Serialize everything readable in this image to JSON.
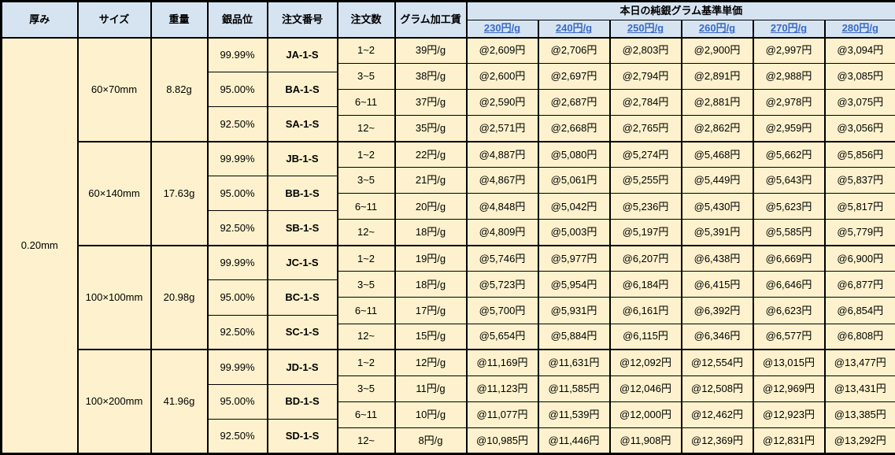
{
  "colors": {
    "header_bg": "#d6e4f2",
    "body_bg": "#fdf2cd",
    "link_blue": "#3a6bc6",
    "border": "#000000"
  },
  "header": {
    "columns": [
      {
        "key": "thickness",
        "label": "厚み"
      },
      {
        "key": "size",
        "label": "サイズ"
      },
      {
        "key": "weight",
        "label": "重量"
      },
      {
        "key": "purity",
        "label": "銀品位"
      },
      {
        "key": "order-number",
        "label": "注文番号"
      },
      {
        "key": "order-qty",
        "label": "注文数"
      },
      {
        "key": "fee",
        "label": "グラム加工賃"
      }
    ],
    "price_group_title": "本日の純銀グラム基準単価",
    "price_columns": [
      "230円/g",
      "240円/g",
      "250円/g",
      "260円/g",
      "270円/g",
      "280円/g"
    ]
  },
  "thickness": "0.20mm",
  "groups": [
    {
      "size": "60×70mm",
      "weight": "8.82g",
      "purities": [
        {
          "purity": "99.99%",
          "order_no": "JA-1-S"
        },
        {
          "purity": "95.00%",
          "order_no": "BA-1-S"
        },
        {
          "purity": "92.50%",
          "order_no": "SA-1-S"
        }
      ],
      "tiers": [
        {
          "qty": "1~2",
          "fee": "39円/g",
          "prices": [
            "@2,609円",
            "@2,706円",
            "@2,803円",
            "@2,900円",
            "@2,997円",
            "@3,094円"
          ]
        },
        {
          "qty": "3~5",
          "fee": "38円/g",
          "prices": [
            "@2,600円",
            "@2,697円",
            "@2,794円",
            "@2,891円",
            "@2,988円",
            "@3,085円"
          ]
        },
        {
          "qty": "6~11",
          "fee": "37円/g",
          "prices": [
            "@2,590円",
            "@2,687円",
            "@2,784円",
            "@2,881円",
            "@2,978円",
            "@3,075円"
          ]
        },
        {
          "qty": "12~",
          "fee": "35円/g",
          "prices": [
            "@2,571円",
            "@2,668円",
            "@2,765円",
            "@2,862円",
            "@2,959円",
            "@3,056円"
          ]
        }
      ]
    },
    {
      "size": "60×140mm",
      "weight": "17.63g",
      "purities": [
        {
          "purity": "99.99%",
          "order_no": "JB-1-S"
        },
        {
          "purity": "95.00%",
          "order_no": "BB-1-S"
        },
        {
          "purity": "92.50%",
          "order_no": "SB-1-S"
        }
      ],
      "tiers": [
        {
          "qty": "1~2",
          "fee": "22円/g",
          "prices": [
            "@4,887円",
            "@5,080円",
            "@5,274円",
            "@5,468円",
            "@5,662円",
            "@5,856円"
          ]
        },
        {
          "qty": "3~5",
          "fee": "21円/g",
          "prices": [
            "@4,867円",
            "@5,061円",
            "@5,255円",
            "@5,449円",
            "@5,643円",
            "@5,837円"
          ]
        },
        {
          "qty": "6~11",
          "fee": "20円/g",
          "prices": [
            "@4,848円",
            "@5,042円",
            "@5,236円",
            "@5,430円",
            "@5,623円",
            "@5,817円"
          ]
        },
        {
          "qty": "12~",
          "fee": "18円/g",
          "prices": [
            "@4,809円",
            "@5,003円",
            "@5,197円",
            "@5,391円",
            "@5,585円",
            "@5,779円"
          ]
        }
      ]
    },
    {
      "size": "100×100mm",
      "weight": "20.98g",
      "purities": [
        {
          "purity": "99.99%",
          "order_no": "JC-1-S"
        },
        {
          "purity": "95.00%",
          "order_no": "BC-1-S"
        },
        {
          "purity": "92.50%",
          "order_no": "SC-1-S"
        }
      ],
      "tiers": [
        {
          "qty": "1~2",
          "fee": "19円/g",
          "prices": [
            "@5,746円",
            "@5,977円",
            "@6,207円",
            "@6,438円",
            "@6,669円",
            "@6,900円"
          ]
        },
        {
          "qty": "3~5",
          "fee": "18円/g",
          "prices": [
            "@5,723円",
            "@5,954円",
            "@6,184円",
            "@6,415円",
            "@6,646円",
            "@6,877円"
          ]
        },
        {
          "qty": "6~11",
          "fee": "17円/g",
          "prices": [
            "@5,700円",
            "@5,931円",
            "@6,161円",
            "@6,392円",
            "@6,623円",
            "@6,854円"
          ]
        },
        {
          "qty": "12~",
          "fee": "15円/g",
          "prices": [
            "@5,654円",
            "@5,884円",
            "@6,115円",
            "@6,346円",
            "@6,577円",
            "@6,808円"
          ]
        }
      ]
    },
    {
      "size": "100×200mm",
      "weight": "41.96g",
      "purities": [
        {
          "purity": "99.99%",
          "order_no": "JD-1-S"
        },
        {
          "purity": "95.00%",
          "order_no": "BD-1-S"
        },
        {
          "purity": "92.50%",
          "order_no": "SD-1-S"
        }
      ],
      "tiers": [
        {
          "qty": "1~2",
          "fee": "12円/g",
          "prices": [
            "@11,169円",
            "@11,631円",
            "@12,092円",
            "@12,554円",
            "@13,015円",
            "@13,477円"
          ]
        },
        {
          "qty": "3~5",
          "fee": "11円/g",
          "prices": [
            "@11,123円",
            "@11,585円",
            "@12,046円",
            "@12,508円",
            "@12,969円",
            "@13,431円"
          ]
        },
        {
          "qty": "6~11",
          "fee": "10円/g",
          "prices": [
            "@11,077円",
            "@11,539円",
            "@12,000円",
            "@12,462円",
            "@12,923円",
            "@13,385円"
          ]
        },
        {
          "qty": "12~",
          "fee": "8円/g",
          "prices": [
            "@10,985円",
            "@11,446円",
            "@11,908円",
            "@12,369円",
            "@12,831円",
            "@13,292円"
          ]
        }
      ]
    }
  ]
}
